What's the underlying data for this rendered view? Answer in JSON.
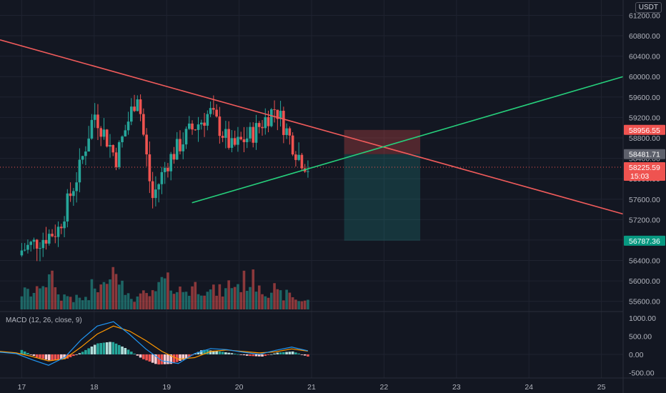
{
  "currency_label": "USDT",
  "macd_label": "MACD (12, 26, close, 9)",
  "colors": {
    "background": "#131722",
    "grid": "#1f2330",
    "bull": "#26a69a",
    "bear": "#ef5350",
    "downtrend": "#f05b5b",
    "uptrend": "#26d07c",
    "macd_line": "#2196f3",
    "signal_line": "#ff9800"
  },
  "chart_data": [
    {
      "type": "candlestick",
      "name": "price",
      "ylim": [
        55400,
        61500
      ],
      "y_ticks": [
        55600,
        56000,
        56400,
        56800,
        57200,
        57600,
        58000,
        58400,
        58800,
        59200,
        59600,
        60000,
        60400,
        60800,
        61200
      ],
      "y_tick_labels": [
        "55600.00",
        "56000.00",
        "56400.00",
        "56800.00",
        "57200.00",
        "57600.00",
        "58000.00",
        "58400.00",
        "58800.00",
        "59200.00",
        "59600.00",
        "60000.00",
        "60400.00",
        "60800.00",
        "61200.00"
      ],
      "x_range_days": [
        16.7,
        25.3
      ],
      "x_ticks": [
        17,
        18,
        19,
        20,
        21,
        22,
        23,
        24,
        25
      ],
      "x_tick_labels": [
        "17",
        "18",
        "19",
        "20",
        "21",
        "22",
        "23",
        "24",
        "25"
      ],
      "current_price": 58225.59,
      "countdown": "15:03",
      "price_tags": [
        {
          "value": 58956.55,
          "label": "58956.55",
          "color": "#ef5350"
        },
        {
          "value": 58481.71,
          "label": "58481.71",
          "color": "#5d606b"
        },
        {
          "value": 58225.59,
          "label": "58225.59",
          "color": "#ef5350"
        },
        {
          "value": 56787.36,
          "label": "56787.36",
          "color": "#089981"
        }
      ],
      "trendlines": [
        {
          "role": "downtrend",
          "x": [
            16.7,
            25.3
          ],
          "y": [
            60720,
            57310
          ]
        },
        {
          "role": "uptrend",
          "x": [
            19.35,
            25.3
          ],
          "y": [
            57530,
            60000
          ]
        }
      ],
      "position": {
        "x_start": 21.45,
        "x_end": 22.5,
        "entry": 58481.71,
        "stop": 58956.55,
        "target": 56787.36
      },
      "candles_sampled_ohlc": [
        [
          17.0,
          56500,
          56800,
          56200,
          56600
        ],
        [
          17.5,
          56900,
          57300,
          56600,
          57000
        ],
        [
          17.8,
          57100,
          58500,
          56900,
          58200
        ],
        [
          18.0,
          58300,
          59600,
          58100,
          59300
        ],
        [
          18.3,
          59000,
          59400,
          58200,
          58400
        ],
        [
          18.6,
          58200,
          60100,
          57800,
          59700
        ],
        [
          18.8,
          59500,
          59700,
          57400,
          57600
        ],
        [
          19.0,
          57800,
          58700,
          56900,
          58300
        ],
        [
          19.3,
          58100,
          59200,
          57700,
          58900
        ],
        [
          19.6,
          59000,
          59700,
          58400,
          59300
        ],
        [
          19.9,
          59200,
          59500,
          58300,
          58600
        ],
        [
          20.2,
          58500,
          59200,
          58100,
          58900
        ],
        [
          20.5,
          59000,
          59900,
          58700,
          59400
        ],
        [
          20.8,
          59300,
          59600,
          58400,
          58500
        ],
        [
          20.95,
          58500,
          58700,
          58100,
          58226
        ]
      ]
    },
    {
      "type": "bar",
      "name": "volume",
      "values_sampled": [
        35,
        60,
        28,
        22,
        45,
        90,
        25,
        30,
        55,
        40,
        48,
        38,
        52,
        60,
        42,
        30,
        20
      ]
    },
    {
      "type": "line",
      "name": "MACD",
      "ylim": [
        -650,
        1100
      ],
      "y_ticks": [
        -500,
        0,
        500,
        1000
      ],
      "y_tick_labels": [
        "-500.00",
        "0.00",
        "500.00",
        "1000.00"
      ],
      "macd_values_sampled": [
        60,
        20,
        -150,
        -300,
        -80,
        400,
        780,
        900,
        550,
        150,
        -180,
        -250,
        20,
        160,
        130,
        60,
        0,
        110,
        200,
        100
      ],
      "signal_values_sampled": [
        80,
        40,
        -60,
        -180,
        -120,
        200,
        560,
        780,
        640,
        380,
        80,
        -130,
        -90,
        80,
        120,
        80,
        40,
        70,
        150,
        90
      ],
      "histogram_sampled": [
        120,
        -80,
        -180,
        -120,
        60,
        300,
        350,
        150,
        -120,
        -280,
        -260,
        -100,
        130,
        90,
        30,
        -40,
        -60,
        50,
        80,
        -60
      ]
    }
  ]
}
